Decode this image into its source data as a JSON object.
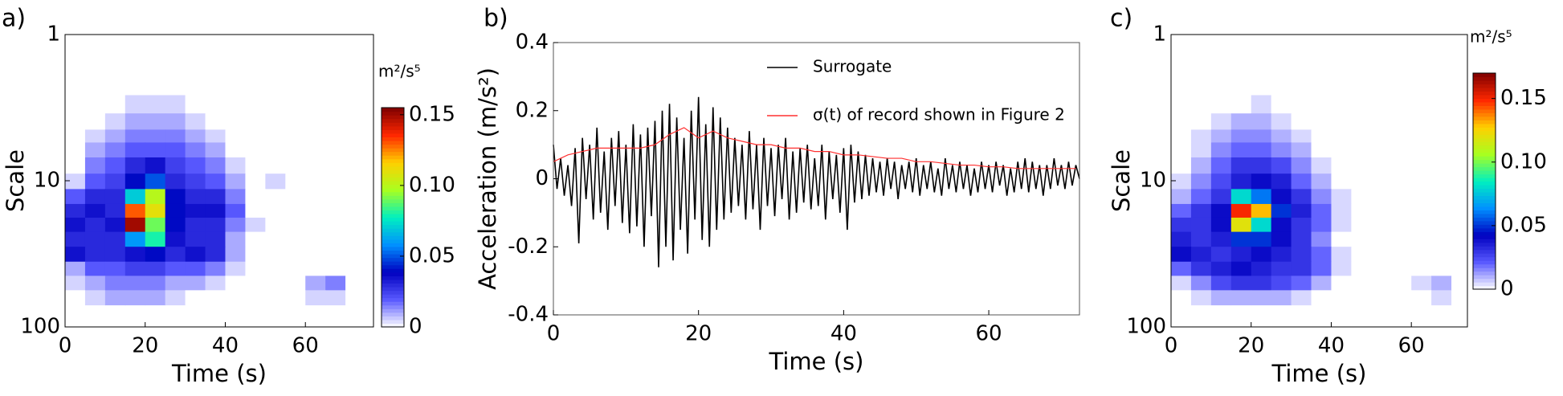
{
  "chart_data": [
    {
      "type": "heatmap",
      "panel_label": "a)",
      "xlabel": "Time (s)",
      "ylabel": "Scale",
      "colorbar_label": "m²/s⁵",
      "xlim": [
        0,
        77
      ],
      "xticks": [
        0,
        20,
        40,
        60
      ],
      "ylim": [
        1,
        100
      ],
      "yticks": [
        1,
        10,
        100
      ],
      "yscale": "log",
      "y_inverted": true,
      "clim": [
        0,
        0.155
      ],
      "cticks": [
        0,
        0.05,
        {
          "value": 0.1,
          "label": "0.10"
        },
        0.15
      ],
      "colormap": [
        "#ffffff",
        "#5a5aff",
        "#0000c0",
        "#0090ff",
        "#00f0c0",
        "#a8ff20",
        "#ffd000",
        "#ff2800",
        "#800000"
      ],
      "x": [
        2.5,
        7.5,
        12.5,
        17.5,
        22.5,
        27.5,
        32.5,
        37.5,
        42.5,
        47.5,
        52.5,
        57.5,
        62.5,
        67.5,
        72.5
      ],
      "y": [
        3,
        4,
        5,
        6,
        8,
        10,
        13,
        16,
        20,
        25,
        32,
        40,
        50,
        63
      ],
      "z": [
        [
          0,
          0,
          0,
          0.005,
          0.005,
          0.005,
          0,
          0,
          0,
          0,
          0,
          0,
          0,
          0,
          0
        ],
        [
          0,
          0,
          0.005,
          0.01,
          0.01,
          0.01,
          0.005,
          0,
          0,
          0,
          0,
          0,
          0,
          0,
          0
        ],
        [
          0,
          0.005,
          0.01,
          0.015,
          0.015,
          0.015,
          0.01,
          0.005,
          0,
          0,
          0,
          0,
          0,
          0,
          0
        ],
        [
          0,
          0.01,
          0.015,
          0.02,
          0.02,
          0.02,
          0.015,
          0.01,
          0,
          0,
          0,
          0,
          0,
          0,
          0
        ],
        [
          0,
          0.015,
          0.02,
          0.03,
          0.035,
          0.025,
          0.02,
          0.015,
          0.005,
          0,
          0,
          0,
          0,
          0,
          0
        ],
        [
          0.005,
          0.02,
          0.025,
          0.04,
          0.05,
          0.03,
          0.025,
          0.02,
          0.01,
          0,
          0.005,
          0,
          0,
          0,
          0
        ],
        [
          0.02,
          0.03,
          0.03,
          0.07,
          0.1,
          0.04,
          0.03,
          0.03,
          0.015,
          0,
          0,
          0,
          0,
          0,
          0
        ],
        [
          0.03,
          0.035,
          0.03,
          0.13,
          0.11,
          0.04,
          0.035,
          0.035,
          0.02,
          0,
          0,
          0,
          0,
          0,
          0
        ],
        [
          0.035,
          0.03,
          0.035,
          0.15,
          0.09,
          0.04,
          0.03,
          0.03,
          0.015,
          0.005,
          0,
          0,
          0,
          0,
          0
        ],
        [
          0.03,
          0.03,
          0.03,
          0.06,
          0.08,
          0.035,
          0.03,
          0.03,
          0.01,
          0,
          0,
          0,
          0,
          0,
          0
        ],
        [
          0.035,
          0.03,
          0.03,
          0.035,
          0.04,
          0.03,
          0.035,
          0.03,
          0.01,
          0,
          0,
          0,
          0,
          0,
          0
        ],
        [
          0.01,
          0.02,
          0.02,
          0.025,
          0.025,
          0.02,
          0.02,
          0.015,
          0.005,
          0,
          0,
          0,
          0,
          0,
          0
        ],
        [
          0.005,
          0.01,
          0.015,
          0.015,
          0.015,
          0.01,
          0.01,
          0.005,
          0,
          0,
          0,
          0,
          0.01,
          0.015,
          0
        ],
        [
          0,
          0.005,
          0.01,
          0.01,
          0.01,
          0.005,
          0,
          0,
          0,
          0,
          0,
          0,
          0.005,
          0.005,
          0
        ]
      ]
    },
    {
      "type": "line",
      "panel_label": "b)",
      "xlabel": "Time (s)",
      "ylabel": "Acceleration (m/s²)",
      "xlim": [
        0,
        72.5
      ],
      "xticks": [
        0,
        20,
        40,
        60
      ],
      "ylim": [
        -0.4,
        0.4
      ],
      "yticks": [
        -0.4,
        -0.2,
        0,
        0.2,
        0.4
      ],
      "series": [
        {
          "name": "Surrogate",
          "color": "#000000",
          "x": [
            0,
            0.5,
            1,
            1.5,
            2,
            2.5,
            3,
            3.5,
            4,
            4.5,
            5,
            5.5,
            6,
            6.5,
            7,
            7.5,
            8,
            8.5,
            9,
            9.5,
            10,
            10.5,
            11,
            11.5,
            12,
            12.5,
            13,
            13.5,
            14,
            14.5,
            15,
            15.5,
            16,
            16.5,
            17,
            17.5,
            18,
            18.5,
            19,
            19.5,
            20,
            20.5,
            21,
            21.5,
            22,
            22.5,
            23,
            23.5,
            24,
            24.5,
            25,
            25.5,
            26,
            26.5,
            27,
            27.5,
            28,
            28.5,
            29,
            29.5,
            30,
            30.5,
            31,
            31.5,
            32,
            32.5,
            33,
            33.5,
            34,
            34.5,
            35,
            35.5,
            36,
            36.5,
            37,
            37.5,
            38,
            38.5,
            39,
            39.5,
            40,
            40.5,
            41,
            41.5,
            42,
            42.5,
            43,
            43.5,
            44,
            44.5,
            45,
            45.5,
            46,
            46.5,
            47,
            47.5,
            48,
            48.5,
            49,
            49.5,
            50,
            50.5,
            51,
            51.5,
            52,
            52.5,
            53,
            53.5,
            54,
            54.5,
            55,
            55.5,
            56,
            56.5,
            57,
            57.5,
            58,
            58.5,
            59,
            59.5,
            60,
            60.5,
            61,
            61.5,
            62,
            62.5,
            63,
            63.5,
            64,
            64.5,
            65,
            65.5,
            66,
            66.5,
            67,
            67.5,
            68,
            68.5,
            69,
            69.5,
            70,
            70.5,
            71,
            71.5,
            72,
            72.5
          ],
          "values": [
            0.1,
            -0.03,
            0.06,
            -0.05,
            0.04,
            -0.08,
            0.09,
            -0.19,
            0.12,
            -0.06,
            0.1,
            -0.12,
            0.15,
            -0.1,
            0.08,
            -0.15,
            0.12,
            -0.08,
            0.14,
            -0.13,
            0.1,
            -0.16,
            0.16,
            -0.14,
            0.13,
            -0.2,
            0.15,
            -0.11,
            0.17,
            -0.26,
            0.2,
            -0.2,
            0.22,
            -0.24,
            0.18,
            -0.15,
            0.12,
            -0.22,
            0.2,
            -0.12,
            0.24,
            -0.18,
            0.16,
            -0.2,
            0.21,
            -0.15,
            0.18,
            -0.12,
            0.15,
            -0.1,
            0.12,
            -0.08,
            0.1,
            -0.12,
            0.14,
            -0.09,
            0.1,
            -0.15,
            0.12,
            -0.08,
            0.09,
            -0.11,
            0.1,
            -0.06,
            0.12,
            -0.12,
            0.08,
            -0.1,
            0.09,
            -0.07,
            0.1,
            -0.09,
            0.06,
            -0.08,
            0.1,
            -0.12,
            0.08,
            -0.06,
            0.07,
            -0.1,
            0.09,
            -0.15,
            0.1,
            -0.07,
            0.08,
            -0.06,
            0.07,
            -0.05,
            0.06,
            -0.04,
            0.05,
            -0.05,
            0.06,
            -0.03,
            0.05,
            -0.06,
            0.04,
            -0.03,
            0.05,
            -0.04,
            0.06,
            -0.05,
            0.04,
            -0.03,
            0.05,
            -0.04,
            0.03,
            -0.05,
            0.06,
            -0.03,
            0.04,
            -0.04,
            0.05,
            -0.03,
            0.04,
            -0.05,
            0.03,
            -0.04,
            0.05,
            -0.03,
            0.04,
            -0.04,
            0.05,
            -0.02,
            0.04,
            -0.05,
            0.03,
            -0.04,
            0.05,
            -0.03,
            0.06,
            -0.04,
            0.05,
            -0.03,
            0.04,
            -0.05,
            0.04,
            -0.03,
            0.06,
            -0.02,
            0.04,
            -0.03,
            0.05,
            -0.02,
            0.04,
            0.0
          ]
        },
        {
          "name": "σ(t) of record shown in Figure 2",
          "color": "#ff3030",
          "x": [
            0,
            2,
            4,
            6,
            8,
            10,
            12,
            14,
            16,
            18,
            20,
            22,
            24,
            26,
            28,
            30,
            32,
            34,
            36,
            38,
            40,
            42,
            44,
            46,
            48,
            50,
            52,
            54,
            56,
            58,
            60,
            62,
            64,
            66,
            68,
            70,
            72
          ],
          "values": [
            0.05,
            0.07,
            0.08,
            0.09,
            0.09,
            0.09,
            0.09,
            0.1,
            0.13,
            0.15,
            0.12,
            0.14,
            0.12,
            0.11,
            0.1,
            0.1,
            0.09,
            0.09,
            0.08,
            0.08,
            0.07,
            0.07,
            0.065,
            0.06,
            0.06,
            0.05,
            0.05,
            0.045,
            0.04,
            0.04,
            0.035,
            0.035,
            0.03,
            0.03,
            0.03,
            0.03,
            0.03
          ]
        }
      ]
    },
    {
      "type": "heatmap",
      "panel_label": "c)",
      "xlabel": "Time (s)",
      "ylabel": "Scale",
      "colorbar_label": "m²/s⁵",
      "xlim": [
        0,
        74
      ],
      "xticks": [
        0,
        20,
        40,
        60
      ],
      "ylim": [
        1,
        100
      ],
      "yticks": [
        1,
        10,
        100
      ],
      "yscale": "log",
      "y_inverted": true,
      "clim": [
        0,
        0.17
      ],
      "cticks": [
        0,
        0.05,
        {
          "value": 0.1,
          "label": "0.10"
        },
        0.15
      ],
      "colormap": [
        "#ffffff",
        "#5a5aff",
        "#0000c0",
        "#0090ff",
        "#00f0c0",
        "#a8ff20",
        "#ffd000",
        "#ff2800",
        "#800000"
      ],
      "x": [
        2.5,
        7.5,
        12.5,
        17.5,
        22.5,
        27.5,
        32.5,
        37.5,
        42.5,
        47.5,
        52.5,
        57.5,
        62.5,
        67.5,
        72.5
      ],
      "y": [
        3,
        4,
        5,
        6,
        8,
        10,
        13,
        16,
        20,
        25,
        32,
        40,
        50,
        63
      ],
      "z": [
        [
          0,
          0,
          0,
          0,
          0.005,
          0,
          0,
          0,
          0,
          0,
          0,
          0,
          0,
          0,
          0
        ],
        [
          0,
          0,
          0.005,
          0.01,
          0.01,
          0.005,
          0,
          0,
          0,
          0,
          0,
          0,
          0,
          0,
          0
        ],
        [
          0,
          0.005,
          0.01,
          0.015,
          0.015,
          0.01,
          0.005,
          0,
          0,
          0,
          0,
          0,
          0,
          0,
          0
        ],
        [
          0,
          0.005,
          0.015,
          0.02,
          0.02,
          0.015,
          0.01,
          0,
          0,
          0,
          0,
          0,
          0,
          0,
          0
        ],
        [
          0,
          0.01,
          0.02,
          0.03,
          0.03,
          0.025,
          0.015,
          0.005,
          0,
          0,
          0,
          0,
          0,
          0,
          0
        ],
        [
          0.005,
          0.015,
          0.025,
          0.035,
          0.04,
          0.035,
          0.02,
          0.01,
          0,
          0,
          0,
          0,
          0,
          0,
          0
        ],
        [
          0.01,
          0.02,
          0.03,
          0.08,
          0.06,
          0.04,
          0.03,
          0.015,
          0.005,
          0,
          0,
          0,
          0,
          0,
          0
        ],
        [
          0.02,
          0.03,
          0.04,
          0.15,
          0.13,
          0.05,
          0.035,
          0.02,
          0.005,
          0,
          0,
          0,
          0,
          0,
          0
        ],
        [
          0.03,
          0.03,
          0.04,
          0.12,
          0.08,
          0.04,
          0.03,
          0.02,
          0.005,
          0,
          0,
          0,
          0,
          0,
          0
        ],
        [
          0.035,
          0.03,
          0.035,
          0.05,
          0.05,
          0.04,
          0.03,
          0.015,
          0,
          0,
          0,
          0,
          0,
          0,
          0
        ],
        [
          0.04,
          0.035,
          0.03,
          0.035,
          0.04,
          0.035,
          0.03,
          0.02,
          0.005,
          0,
          0,
          0,
          0,
          0,
          0
        ],
        [
          0.02,
          0.03,
          0.035,
          0.04,
          0.035,
          0.03,
          0.03,
          0.02,
          0.005,
          0,
          0,
          0,
          0,
          0,
          0
        ],
        [
          0.005,
          0.015,
          0.025,
          0.03,
          0.03,
          0.025,
          0.02,
          0.01,
          0,
          0,
          0,
          0,
          0.005,
          0.01,
          0
        ],
        [
          0,
          0.005,
          0.01,
          0.01,
          0.01,
          0.01,
          0.005,
          0,
          0,
          0,
          0,
          0,
          0,
          0.005,
          0
        ]
      ]
    }
  ]
}
